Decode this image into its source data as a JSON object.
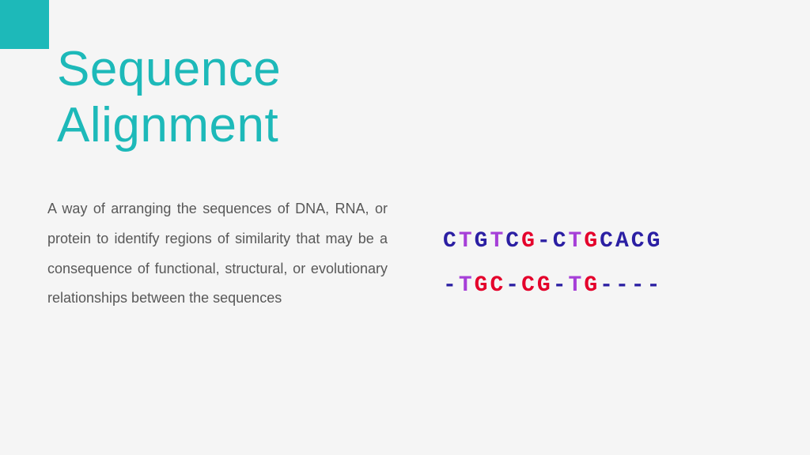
{
  "accent_color": "#1db9b9",
  "background_color": "#f5f5f5",
  "title": "Sequence\nAlignment",
  "title_color": "#1db9b9",
  "title_fontsize": 62,
  "body": "A way of arranging the sequences of DNA, RNA, or protein to identify regions of similarity that may be a consequence of functional, structural, or evolutionary relationships between the sequences",
  "body_color": "#585858",
  "body_fontsize": 18,
  "sequence": {
    "fontsize": 28,
    "letter_spacing": 3,
    "lines": [
      [
        {
          "ch": "C",
          "color": "#2b1fa3"
        },
        {
          "ch": "T",
          "color": "#a63fd8"
        },
        {
          "ch": "G",
          "color": "#2b1fa3"
        },
        {
          "ch": "T",
          "color": "#a63fd8"
        },
        {
          "ch": "C",
          "color": "#2b1fa3"
        },
        {
          "ch": "G",
          "color": "#e4002b"
        },
        {
          "ch": "-",
          "color": "#2b1fa3"
        },
        {
          "ch": "C",
          "color": "#2b1fa3"
        },
        {
          "ch": "T",
          "color": "#a63fd8"
        },
        {
          "ch": "G",
          "color": "#e4002b"
        },
        {
          "ch": "C",
          "color": "#2b1fa3"
        },
        {
          "ch": "A",
          "color": "#2b1fa3"
        },
        {
          "ch": "C",
          "color": "#2b1fa3"
        },
        {
          "ch": "G",
          "color": "#2b1fa3"
        }
      ],
      [
        {
          "ch": "-",
          "color": "#2b1fa3"
        },
        {
          "ch": "T",
          "color": "#a63fd8"
        },
        {
          "ch": "G",
          "color": "#e4002b"
        },
        {
          "ch": "C",
          "color": "#e4002b"
        },
        {
          "ch": "-",
          "color": "#2b1fa3"
        },
        {
          "ch": "C",
          "color": "#e4002b"
        },
        {
          "ch": "G",
          "color": "#e4002b"
        },
        {
          "ch": "-",
          "color": "#2b1fa3"
        },
        {
          "ch": "T",
          "color": "#a63fd8"
        },
        {
          "ch": "G",
          "color": "#e4002b"
        },
        {
          "ch": "-",
          "color": "#2b1fa3"
        },
        {
          "ch": "-",
          "color": "#2b1fa3"
        },
        {
          "ch": "-",
          "color": "#2b1fa3"
        },
        {
          "ch": "-",
          "color": "#2b1fa3"
        }
      ]
    ]
  }
}
